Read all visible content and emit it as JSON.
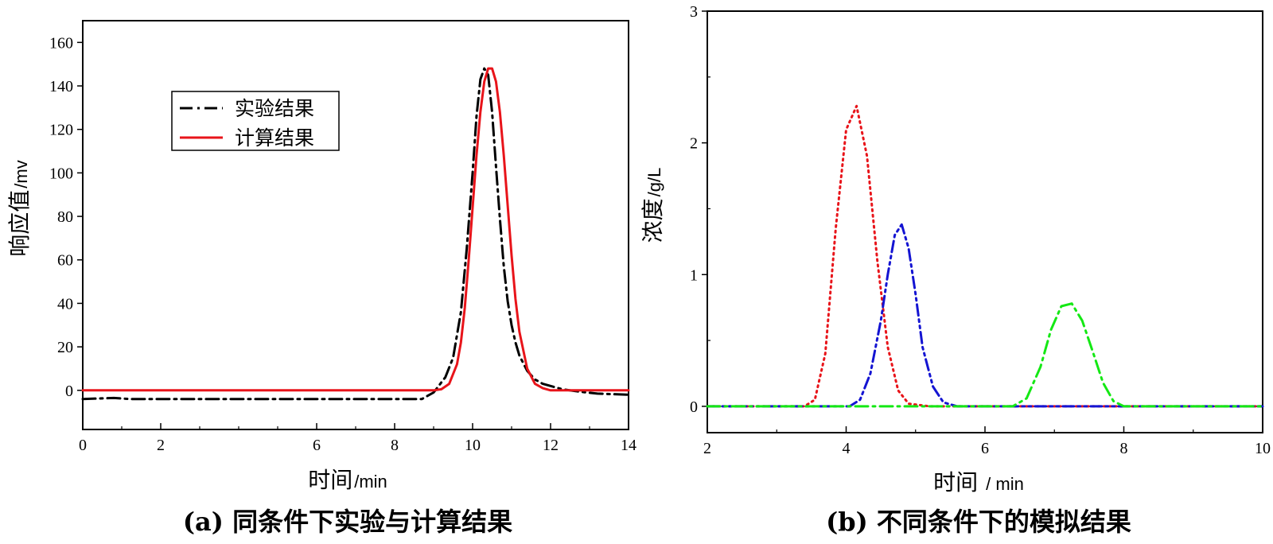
{
  "chart_data": [
    {
      "id": "a",
      "type": "line",
      "caption": "(a) 同条件下实验与计算结果",
      "xlabel": "时间",
      "xunit": "/min",
      "ylabel": "响应值",
      "yunit": "/mv",
      "xlim": [
        0,
        14
      ],
      "ylim": [
        -18,
        170
      ],
      "xticks": [
        0,
        2,
        6,
        8,
        10,
        12,
        14
      ],
      "xminor": [
        1,
        3,
        4,
        5,
        7,
        9,
        11,
        13
      ],
      "yticks": [
        0,
        20,
        40,
        60,
        80,
        100,
        120,
        140,
        160
      ],
      "legend": {
        "position": "upper-left"
      },
      "series": [
        {
          "name": "实验结果",
          "color": "#000000",
          "style": "dashdot",
          "x": [
            0,
            0.8,
            1.2,
            3,
            5,
            7,
            8.7,
            9.0,
            9.3,
            9.5,
            9.7,
            9.85,
            10.0,
            10.1,
            10.2,
            10.3,
            10.4,
            10.5,
            10.6,
            10.7,
            10.8,
            10.9,
            11.0,
            11.1,
            11.2,
            11.4,
            11.6,
            11.8,
            12.0,
            12.3,
            12.7,
            13.2,
            14
          ],
          "y": [
            -4,
            -3.5,
            -4,
            -4,
            -4,
            -4,
            -4,
            -1,
            6,
            15,
            36,
            65,
            100,
            126,
            143,
            148,
            145,
            128,
            103,
            79,
            57,
            41,
            30,
            22,
            16,
            9,
            5,
            3,
            2,
            0.5,
            -0.5,
            -1.5,
            -2
          ]
        },
        {
          "name": "计算结果",
          "color": "#e8141a",
          "style": "solid",
          "x": [
            0,
            9.0,
            9.2,
            9.4,
            9.6,
            9.7,
            9.8,
            9.9,
            10.0,
            10.1,
            10.2,
            10.3,
            10.4,
            10.5,
            10.6,
            10.7,
            10.8,
            10.9,
            11.0,
            11.1,
            11.2,
            11.4,
            11.6,
            11.8,
            12.0,
            14
          ],
          "y": [
            0,
            0,
            0.5,
            3,
            12,
            22,
            38,
            60,
            84,
            108,
            128,
            142,
            148,
            148,
            142,
            128,
            108,
            85,
            62,
            42,
            27,
            10,
            3,
            1,
            0,
            0
          ]
        }
      ]
    },
    {
      "id": "b",
      "type": "line",
      "caption": "(b) 不同条件下的模拟结果",
      "xlabel": "时间",
      "xunit": "/ min",
      "ylabel": "浓度",
      "yunit": "/g/L",
      "xlim": [
        2,
        10
      ],
      "ylim": [
        -0.2,
        3
      ],
      "xticks": [
        2,
        4,
        6,
        8,
        10
      ],
      "xminor": [
        3,
        5,
        7,
        9
      ],
      "yticks": [
        0,
        1,
        2,
        3
      ],
      "yminor": [
        0.5,
        1.5,
        2.5
      ],
      "series": [
        {
          "name": "red",
          "color": "#e8141a",
          "style": "dotted",
          "x": [
            2,
            3.4,
            3.55,
            3.7,
            3.85,
            4.0,
            4.15,
            4.3,
            4.45,
            4.6,
            4.75,
            4.9,
            5.2,
            10
          ],
          "y": [
            0,
            0,
            0.05,
            0.4,
            1.35,
            2.1,
            2.28,
            1.9,
            1.1,
            0.45,
            0.12,
            0.02,
            0,
            0
          ]
        },
        {
          "name": "blue",
          "color": "#1414d2",
          "style": "dashdotdot",
          "x": [
            2,
            4.05,
            4.2,
            4.35,
            4.5,
            4.6,
            4.7,
            4.8,
            4.9,
            5.0,
            5.1,
            5.25,
            5.4,
            5.6,
            10
          ],
          "y": [
            0,
            0,
            0.05,
            0.25,
            0.65,
            1.0,
            1.3,
            1.38,
            1.2,
            0.85,
            0.45,
            0.15,
            0.03,
            0,
            0
          ]
        },
        {
          "name": "green",
          "color": "#14e814",
          "style": "dashdot",
          "x": [
            2,
            6.4,
            6.6,
            6.8,
            6.95,
            7.1,
            7.25,
            7.4,
            7.55,
            7.7,
            7.85,
            8.0,
            10
          ],
          "y": [
            0,
            0,
            0.06,
            0.3,
            0.58,
            0.76,
            0.78,
            0.65,
            0.42,
            0.18,
            0.04,
            0,
            0
          ]
        }
      ]
    }
  ]
}
